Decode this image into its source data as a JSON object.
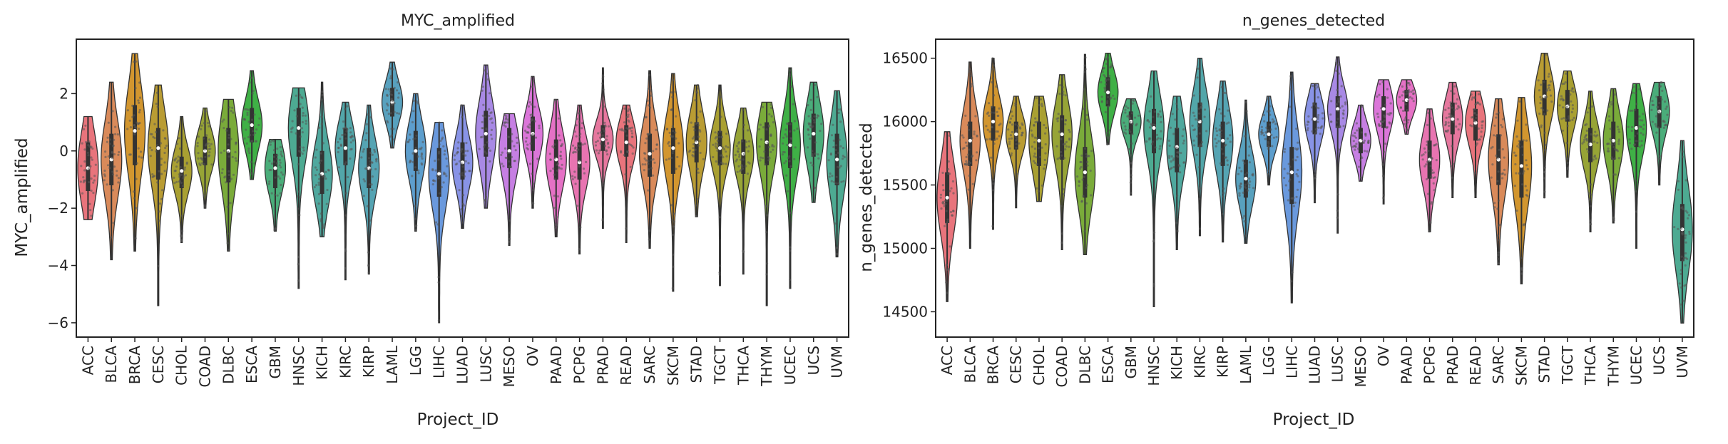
{
  "chart_data": [
    {
      "type": "violin",
      "title": "MYC_amplified",
      "xlabel": "Project_ID",
      "ylabel": "MYC_amplified",
      "ylim": [
        -6.5,
        3.9
      ],
      "yticks": [
        -6,
        -4,
        -2,
        0,
        2
      ],
      "grid": false,
      "overlay": "strip points",
      "categories": [
        "ACC",
        "BLCA",
        "BRCA",
        "CESC",
        "CHOL",
        "COAD",
        "DLBC",
        "ESCA",
        "GBM",
        "HNSC",
        "KICH",
        "KIRC",
        "KIRP",
        "LAML",
        "LGG",
        "LIHC",
        "LUAD",
        "LUSC",
        "MESO",
        "OV",
        "PAAD",
        "PCPG",
        "PRAD",
        "READ",
        "SARC",
        "SKCM",
        "STAD",
        "TGCT",
        "THCA",
        "THYM",
        "UCEC",
        "UCS",
        "UVM"
      ],
      "colors": [
        "#e8747c",
        "#d98a5a",
        "#d2962f",
        "#b99c33",
        "#a9a032",
        "#97a436",
        "#7aab3a",
        "#3fb046",
        "#4aad7a",
        "#4daa92",
        "#4fa89e",
        "#52a6a9",
        "#55a4b3",
        "#58a1be",
        "#5d9ecd",
        "#6a99dd",
        "#8893e6",
        "#a889e5",
        "#c67fe3",
        "#db76d9",
        "#e571c5",
        "#e874b1",
        "#e6779e",
        "#e8747c",
        "#d98a5a",
        "#d2962f",
        "#b99c33",
        "#a9a032",
        "#97a436",
        "#7aab3a",
        "#3fb046",
        "#4aad7a",
        "#4daa92"
      ],
      "series": [
        {
          "min": -2.4,
          "q1": -1.4,
          "median": -0.6,
          "q3": 0.3,
          "max": 1.2
        },
        {
          "min": -3.8,
          "q1": -1.2,
          "median": -0.3,
          "q3": 0.6,
          "max": 2.4
        },
        {
          "min": -3.5,
          "q1": -0.5,
          "median": 0.7,
          "q3": 1.6,
          "max": 3.4
        },
        {
          "min": -5.4,
          "q1": -1.0,
          "median": 0.1,
          "q3": 0.8,
          "max": 2.3
        },
        {
          "min": -3.2,
          "q1": -1.3,
          "median": -0.7,
          "q3": -0.2,
          "max": 1.2
        },
        {
          "min": -2.0,
          "q1": -0.5,
          "median": 0.0,
          "q3": 0.5,
          "max": 1.5
        },
        {
          "min": -3.5,
          "q1": -1.1,
          "median": 0.0,
          "q3": 0.8,
          "max": 1.8
        },
        {
          "min": -1.0,
          "q1": 0.3,
          "median": 0.9,
          "q3": 1.5,
          "max": 2.8
        },
        {
          "min": -2.8,
          "q1": -1.3,
          "median": -0.6,
          "q3": -0.1,
          "max": 0.4
        },
        {
          "min": -4.8,
          "q1": -0.2,
          "median": 0.8,
          "q3": 1.5,
          "max": 2.2
        },
        {
          "min": -3.0,
          "q1": -1.5,
          "median": -0.8,
          "q3": 0.0,
          "max": 2.4
        },
        {
          "min": -4.5,
          "q1": -0.5,
          "median": 0.1,
          "q3": 0.8,
          "max": 1.7
        },
        {
          "min": -4.3,
          "q1": -1.3,
          "median": -0.6,
          "q3": 0.1,
          "max": 1.6
        },
        {
          "min": 0.1,
          "q1": 1.2,
          "median": 1.7,
          "q3": 2.2,
          "max": 3.1
        },
        {
          "min": -2.8,
          "q1": -0.7,
          "median": 0.0,
          "q3": 0.7,
          "max": 2.0
        },
        {
          "min": -6.0,
          "q1": -1.6,
          "median": -0.8,
          "q3": 0.1,
          "max": 1.0
        },
        {
          "min": -2.7,
          "q1": -1.0,
          "median": -0.4,
          "q3": 0.3,
          "max": 1.6
        },
        {
          "min": -2.0,
          "q1": -0.2,
          "median": 0.6,
          "q3": 1.4,
          "max": 3.0
        },
        {
          "min": -3.3,
          "q1": -0.6,
          "median": 0.0,
          "q3": 0.8,
          "max": 1.3
        },
        {
          "min": -2.0,
          "q1": 0.0,
          "median": 0.6,
          "q3": 1.2,
          "max": 2.6
        },
        {
          "min": -3.0,
          "q1": -1.0,
          "median": -0.3,
          "q3": 0.4,
          "max": 1.8
        },
        {
          "min": -3.6,
          "q1": -1.0,
          "median": -0.4,
          "q3": 0.3,
          "max": 1.6
        },
        {
          "min": -2.7,
          "q1": 0.0,
          "median": 0.4,
          "q3": 0.9,
          "max": 2.9
        },
        {
          "min": -3.2,
          "q1": -0.2,
          "median": 0.3,
          "q3": 0.9,
          "max": 1.6
        },
        {
          "min": -3.4,
          "q1": -0.9,
          "median": -0.1,
          "q3": 0.6,
          "max": 2.8
        },
        {
          "min": -4.9,
          "q1": -0.8,
          "median": 0.1,
          "q3": 0.8,
          "max": 2.7
        },
        {
          "min": -2.3,
          "q1": -0.4,
          "median": 0.3,
          "q3": 1.0,
          "max": 2.3
        },
        {
          "min": -4.7,
          "q1": -0.5,
          "median": 0.1,
          "q3": 0.7,
          "max": 2.3
        },
        {
          "min": -4.3,
          "q1": -0.8,
          "median": -0.1,
          "q3": 0.4,
          "max": 1.5
        },
        {
          "min": -5.4,
          "q1": -0.5,
          "median": 0.3,
          "q3": 1.0,
          "max": 1.7
        },
        {
          "min": -4.8,
          "q1": -0.6,
          "median": 0.2,
          "q3": 1.0,
          "max": 2.9
        },
        {
          "min": -1.8,
          "q1": -0.2,
          "median": 0.6,
          "q3": 1.3,
          "max": 2.4
        },
        {
          "min": -3.7,
          "q1": -1.2,
          "median": -0.3,
          "q3": 0.6,
          "max": 2.1
        }
      ]
    },
    {
      "type": "violin",
      "title": "n_genes_detected",
      "xlabel": "Project_ID",
      "ylabel": "n_genes_detected",
      "ylim": [
        14300,
        16650
      ],
      "yticks": [
        14500,
        15000,
        15500,
        16000,
        16500
      ],
      "grid": false,
      "overlay": "strip points",
      "categories": [
        "ACC",
        "BLCA",
        "BRCA",
        "CESC",
        "CHOL",
        "COAD",
        "DLBC",
        "ESCA",
        "GBM",
        "HNSC",
        "KICH",
        "KIRC",
        "KIRP",
        "LAML",
        "LGG",
        "LIHC",
        "LUAD",
        "LUSC",
        "MESO",
        "OV",
        "PAAD",
        "PCPG",
        "PRAD",
        "READ",
        "SARC",
        "SKCM",
        "STAD",
        "TGCT",
        "THCA",
        "THYM",
        "UCEC",
        "UCS",
        "UVM"
      ],
      "colors": [
        "#e8747c",
        "#d98a5a",
        "#d2962f",
        "#b99c33",
        "#a9a032",
        "#97a436",
        "#7aab3a",
        "#3fb046",
        "#4aad7a",
        "#4daa92",
        "#4fa89e",
        "#52a6a9",
        "#55a4b3",
        "#58a1be",
        "#5d9ecd",
        "#6a99dd",
        "#8893e6",
        "#a889e5",
        "#c67fe3",
        "#db76d9",
        "#e571c5",
        "#e874b1",
        "#e6779e",
        "#e8747c",
        "#d98a5a",
        "#d2962f",
        "#b99c33",
        "#a9a032",
        "#97a436",
        "#7aab3a",
        "#3fb046",
        "#4aad7a",
        "#4daa92"
      ],
      "series": [
        {
          "min": 14580,
          "q1": 15200,
          "median": 15400,
          "q3": 15600,
          "max": 15920
        },
        {
          "min": 15000,
          "q1": 15650,
          "median": 15850,
          "q3": 16000,
          "max": 16470
        },
        {
          "min": 15150,
          "q1": 15850,
          "median": 16000,
          "q3": 16120,
          "max": 16500
        },
        {
          "min": 15320,
          "q1": 15780,
          "median": 15900,
          "q3": 16000,
          "max": 16200
        },
        {
          "min": 15370,
          "q1": 15650,
          "median": 15850,
          "q3": 16000,
          "max": 16200
        },
        {
          "min": 14990,
          "q1": 15700,
          "median": 15900,
          "q3": 16050,
          "max": 16370
        },
        {
          "min": 14950,
          "q1": 15400,
          "median": 15600,
          "q3": 15800,
          "max": 16530
        },
        {
          "min": 15820,
          "q1": 16120,
          "median": 16230,
          "q3": 16350,
          "max": 16540
        },
        {
          "min": 15420,
          "q1": 15900,
          "median": 16000,
          "q3": 16080,
          "max": 16180
        },
        {
          "min": 14540,
          "q1": 15750,
          "median": 15950,
          "q3": 16100,
          "max": 16400
        },
        {
          "min": 14990,
          "q1": 15600,
          "median": 15800,
          "q3": 15950,
          "max": 16200
        },
        {
          "min": 15100,
          "q1": 15800,
          "median": 16000,
          "q3": 16150,
          "max": 16500
        },
        {
          "min": 15050,
          "q1": 15650,
          "median": 15850,
          "q3": 16000,
          "max": 16320
        },
        {
          "min": 15040,
          "q1": 15400,
          "median": 15550,
          "q3": 15700,
          "max": 16170
        },
        {
          "min": 15500,
          "q1": 15800,
          "median": 15900,
          "q3": 16000,
          "max": 16200
        },
        {
          "min": 14570,
          "q1": 15350,
          "median": 15600,
          "q3": 15800,
          "max": 16390
        },
        {
          "min": 15360,
          "q1": 15900,
          "median": 16020,
          "q3": 16150,
          "max": 16300
        },
        {
          "min": 15120,
          "q1": 15950,
          "median": 16100,
          "q3": 16200,
          "max": 16510
        },
        {
          "min": 15530,
          "q1": 15750,
          "median": 15850,
          "q3": 15950,
          "max": 16130
        },
        {
          "min": 15350,
          "q1": 15950,
          "median": 16100,
          "q3": 16200,
          "max": 16330
        },
        {
          "min": 15900,
          "q1": 16080,
          "median": 16170,
          "q3": 16250,
          "max": 16330
        },
        {
          "min": 15130,
          "q1": 15550,
          "median": 15700,
          "q3": 15850,
          "max": 16100
        },
        {
          "min": 15400,
          "q1": 15900,
          "median": 16020,
          "q3": 16150,
          "max": 16310
        },
        {
          "min": 15400,
          "q1": 15850,
          "median": 15990,
          "q3": 16100,
          "max": 16240
        },
        {
          "min": 14870,
          "q1": 15500,
          "median": 15700,
          "q3": 15900,
          "max": 16180
        },
        {
          "min": 14720,
          "q1": 15400,
          "median": 15650,
          "q3": 15850,
          "max": 16190
        },
        {
          "min": 15400,
          "q1": 16050,
          "median": 16200,
          "q3": 16330,
          "max": 16540
        },
        {
          "min": 15560,
          "q1": 16000,
          "median": 16120,
          "q3": 16250,
          "max": 16400
        },
        {
          "min": 15130,
          "q1": 15680,
          "median": 15820,
          "q3": 15950,
          "max": 16240
        },
        {
          "min": 15200,
          "q1": 15700,
          "median": 15850,
          "q3": 16000,
          "max": 16260
        },
        {
          "min": 15000,
          "q1": 15800,
          "median": 15950,
          "q3": 16100,
          "max": 16300
        },
        {
          "min": 15500,
          "q1": 15950,
          "median": 16080,
          "q3": 16200,
          "max": 16310
        },
        {
          "min": 14410,
          "q1": 14900,
          "median": 15150,
          "q3": 15350,
          "max": 15850
        }
      ]
    }
  ]
}
